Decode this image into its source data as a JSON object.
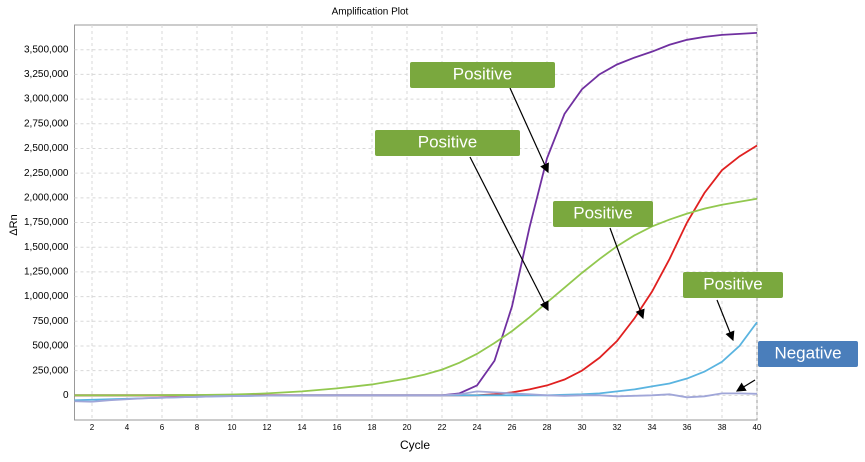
{
  "chart_data": {
    "type": "line",
    "title": "Amplification Plot",
    "x_label": "Cycle",
    "y_label": "ΔRn",
    "x": [
      1,
      2,
      3,
      4,
      5,
      6,
      7,
      8,
      9,
      10,
      11,
      12,
      13,
      14,
      15,
      16,
      17,
      18,
      19,
      20,
      21,
      22,
      23,
      24,
      25,
      26,
      27,
      28,
      29,
      30,
      31,
      32,
      33,
      34,
      35,
      36,
      37,
      38,
      39,
      40
    ],
    "xlim": [
      1,
      40
    ],
    "xticks": [
      2,
      4,
      6,
      8,
      10,
      12,
      14,
      16,
      18,
      20,
      22,
      24,
      26,
      28,
      30,
      32,
      34,
      36,
      38,
      40
    ],
    "ylim": [
      -250000,
      3750000
    ],
    "yticks": [
      0,
      {
        "value": 250000,
        "label": "250,000"
      },
      {
        "value": 500000,
        "label": "500,000"
      },
      {
        "value": 750000,
        "label": "750,000"
      },
      {
        "value": 1000000,
        "label": "1,000,000"
      },
      {
        "value": 1250000,
        "label": "1,250,000"
      },
      {
        "value": 1500000,
        "label": "1,500,000"
      },
      {
        "value": 1750000,
        "label": "1,750,000"
      },
      {
        "value": 2000000,
        "label": "2,000,000"
      },
      {
        "value": 2250000,
        "label": "2,250,000"
      },
      {
        "value": 2500000,
        "label": "2,500,000"
      },
      {
        "value": 2750000,
        "label": "2,750,000"
      },
      {
        "value": 3000000,
        "label": "3,000,000"
      },
      {
        "value": 3250000,
        "label": "3,250,000"
      },
      {
        "value": 3500000,
        "label": "3,500,000"
      }
    ],
    "grid": true,
    "series": [
      {
        "color": "#7030a0",
        "values": [
          0,
          0,
          0,
          0,
          0,
          0,
          0,
          0,
          0,
          0,
          0,
          0,
          0,
          0,
          0,
          0,
          0,
          0,
          0,
          0,
          0,
          0,
          20000,
          100000,
          350000,
          900000,
          1700000,
          2400000,
          2850000,
          3100000,
          3250000,
          3350000,
          3420000,
          3480000,
          3550000,
          3600000,
          3630000,
          3650000,
          3660000,
          3670000
        ]
      },
      {
        "color": "#e02020",
        "values": [
          0,
          0,
          0,
          0,
          0,
          0,
          0,
          0,
          0,
          0,
          0,
          0,
          0,
          0,
          0,
          0,
          0,
          0,
          0,
          0,
          0,
          0,
          0,
          0,
          10000,
          30000,
          60000,
          100000,
          160000,
          250000,
          380000,
          550000,
          780000,
          1050000,
          1380000,
          1750000,
          2050000,
          2280000,
          2420000,
          2530000
        ]
      },
      {
        "color": "#92c84f",
        "values": [
          0,
          0,
          0,
          0,
          1000,
          2000,
          2500,
          3000,
          5000,
          8000,
          13000,
          20000,
          30000,
          40000,
          55000,
          70000,
          90000,
          110000,
          140000,
          170000,
          210000,
          260000,
          330000,
          420000,
          530000,
          650000,
          790000,
          940000,
          1090000,
          1240000,
          1380000,
          1510000,
          1620000,
          1710000,
          1780000,
          1840000,
          1890000,
          1930000,
          1960000,
          1990000
        ]
      },
      {
        "color": "#5ab4e0",
        "values": [
          -50000,
          -45000,
          -40000,
          -35000,
          -30000,
          -25000,
          -20000,
          -15000,
          -10000,
          -8000,
          -5000,
          -3000,
          -2000,
          0,
          0,
          0,
          0,
          0,
          0,
          0,
          0,
          0,
          0,
          0,
          0,
          0,
          0,
          0,
          5000,
          10000,
          20000,
          40000,
          60000,
          90000,
          120000,
          170000,
          240000,
          340000,
          500000,
          740000
        ]
      },
      {
        "color": "#a0a6d8",
        "values": [
          -60000,
          -65000,
          -50000,
          -40000,
          -30000,
          -25000,
          -20000,
          -15000,
          -10000,
          -8000,
          -5000,
          -3000,
          -2000,
          0,
          0,
          0,
          0,
          0,
          0,
          0,
          0,
          0,
          10000,
          40000,
          30000,
          20000,
          10000,
          0,
          -5000,
          0,
          0,
          -10000,
          -5000,
          0,
          10000,
          -20000,
          -10000,
          20000,
          20000,
          15000
        ]
      }
    ],
    "annotations": [
      "Positive",
      "Positive",
      "Positive",
      "Positive",
      "Negative"
    ]
  }
}
